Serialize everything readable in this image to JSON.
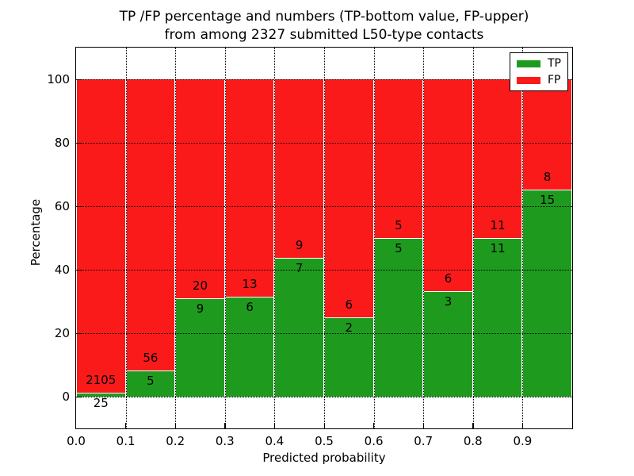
{
  "title": {
    "line1": "TP /FP percentage and numbers (TP-bottom value, FP-upper)",
    "line2": "from among 2327 submitted L50-type contacts"
  },
  "colors": {
    "tp_green": "#1e9b1e",
    "fp_red": "#fb1a1a",
    "grid": "#000000",
    "background": "#ffffff"
  },
  "chart_data": {
    "type": "bar",
    "stacked": true,
    "title": "TP /FP percentage and numbers (TP-bottom value, FP-upper) from among 2327 submitted L50-type contacts",
    "xlabel": "Predicted probability",
    "ylabel": "Percentage",
    "xlim": [
      0.0,
      1.0
    ],
    "ylim": [
      -10,
      110
    ],
    "bin_edges": [
      0.0,
      0.1,
      0.2,
      0.3,
      0.4,
      0.5,
      0.6,
      0.7,
      0.8,
      0.9,
      1.0
    ],
    "series": [
      {
        "name": "TP",
        "color": "#1e9b1e",
        "counts": [
          25,
          5,
          9,
          6,
          7,
          2,
          5,
          3,
          11,
          15
        ]
      },
      {
        "name": "FP",
        "color": "#fb1a1a",
        "counts": [
          2105,
          56,
          20,
          13,
          9,
          6,
          5,
          6,
          11,
          8
        ]
      }
    ],
    "tp_percentages": [
      1.2,
      8.2,
      31.0,
      31.6,
      43.8,
      25.0,
      50.0,
      33.3,
      50.0,
      65.2
    ],
    "bar_value_note": "each bin stacked to 100%; TP% = TP/(TP+FP)*100; raw counts printed at the TP/FP boundary (TP below, FP above)",
    "xticks": [
      0.0,
      0.1,
      0.2,
      0.3,
      0.4,
      0.5,
      0.6,
      0.7,
      0.8,
      0.9
    ],
    "xtick_labels": [
      "0.0",
      "0.1",
      "0.2",
      "0.3",
      "0.4",
      "0.5",
      "0.6",
      "0.7",
      "0.8",
      "0.9"
    ],
    "yticks": [
      0,
      20,
      40,
      60,
      80,
      100
    ],
    "ytick_labels": [
      "0",
      "20",
      "40",
      "60",
      "80",
      "100"
    ],
    "grid": "dotted, both axes, drawn over bars",
    "legend_position": "upper right",
    "total_contacts": 2327
  }
}
